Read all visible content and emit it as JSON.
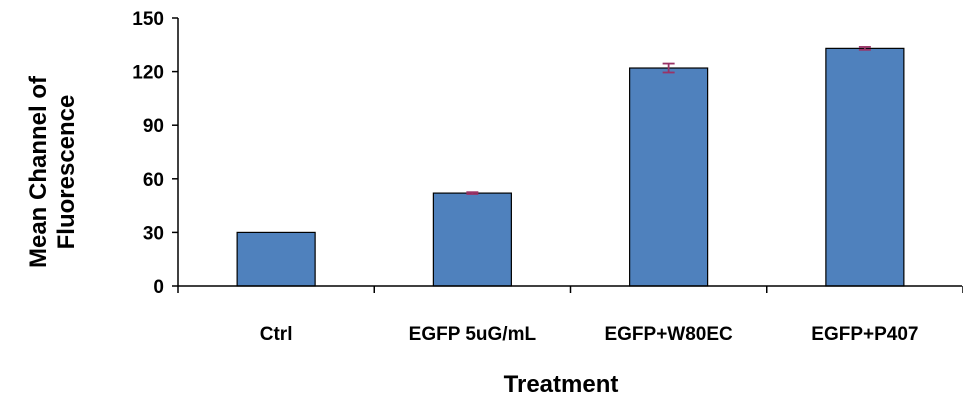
{
  "chart_data": {
    "type": "bar",
    "title": "",
    "xlabel": "Treatment",
    "ylabel_lines": [
      "Mean Channel  of",
      "Fluorescence"
    ],
    "categories": [
      "Ctrl",
      "EGFP 5uG/mL",
      "EGFP+W80EC",
      "EGFP+P407"
    ],
    "values": [
      30,
      52,
      122,
      133
    ],
    "errors": [
      0,
      0.5,
      2.5,
      0.8
    ],
    "ylim": [
      0,
      150
    ],
    "yticks": [
      "0",
      "30",
      "60",
      "90",
      "120",
      "150"
    ],
    "grid": false,
    "legend": "none",
    "bar_color": "#4f81bd",
    "error_color": "#993366"
  }
}
